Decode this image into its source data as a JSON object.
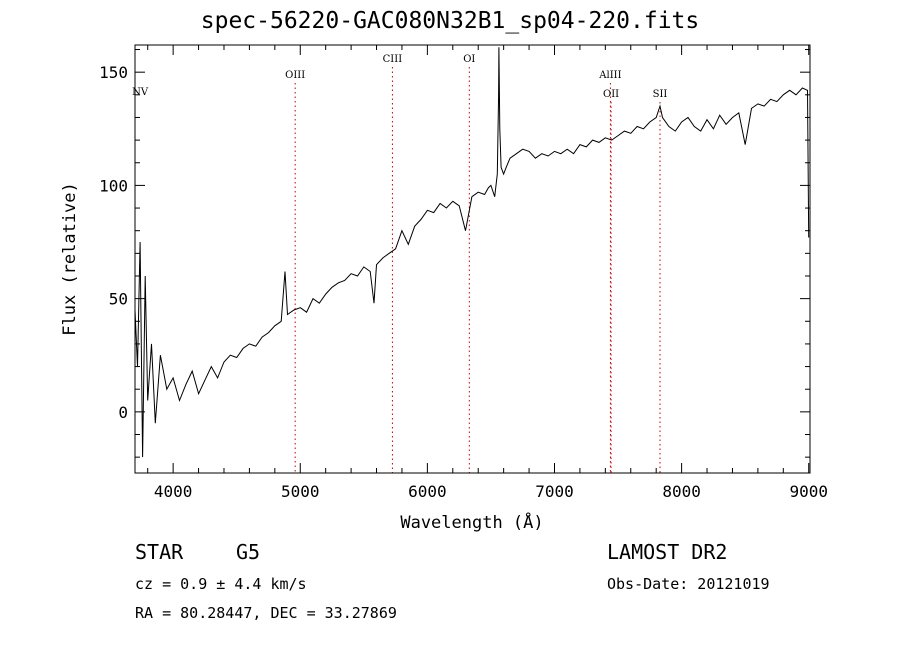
{
  "chart_data": {
    "type": "line",
    "title": "spec-56220-GAC080N32B1_sp04-220.fits",
    "xlabel": "Wavelength (Å)",
    "ylabel": "Flux (relative)",
    "xlim": [
      3700,
      9010
    ],
    "ylim": [
      -27,
      162
    ],
    "x_ticks": [
      4000,
      5000,
      6000,
      7000,
      8000,
      9000
    ],
    "y_ticks": [
      0,
      50,
      100,
      150
    ],
    "grid": false,
    "legend": "none",
    "series": [
      {
        "x": [
          3700,
          3720,
          3740,
          3760,
          3780,
          3800,
          3830,
          3860,
          3900,
          3950,
          4000,
          4050,
          4100,
          4150,
          4200,
          4250,
          4300,
          4350,
          4400,
          4450,
          4500,
          4550,
          4600,
          4650,
          4700,
          4750,
          4800,
          4850,
          4880,
          4900,
          4950,
          5000,
          5050,
          5100,
          5150,
          5200,
          5250,
          5300,
          5350,
          5400,
          5450,
          5500,
          5550,
          5580,
          5600,
          5650,
          5700,
          5750,
          5800,
          5850,
          5900,
          5950,
          6000,
          6050,
          6100,
          6150,
          6200,
          6250,
          6300,
          6350,
          6400,
          6450,
          6480,
          6500,
          6530,
          6550,
          6560,
          6563,
          6570,
          6580,
          6600,
          6620,
          6650,
          6700,
          6750,
          6800,
          6850,
          6900,
          6950,
          7000,
          7050,
          7100,
          7150,
          7200,
          7250,
          7300,
          7350,
          7400,
          7450,
          7500,
          7550,
          7600,
          7650,
          7700,
          7750,
          7800,
          7830,
          7850,
          7900,
          7950,
          8000,
          8050,
          8100,
          8150,
          8200,
          8250,
          8300,
          8350,
          8400,
          8450,
          8500,
          8550,
          8600,
          8650,
          8700,
          8750,
          8800,
          8850,
          8900,
          8950,
          8990,
          9000
        ],
        "y": [
          45,
          20,
          75,
          -20,
          60,
          5,
          30,
          -5,
          25,
          10,
          15,
          5,
          12,
          18,
          8,
          14,
          20,
          15,
          22,
          25,
          24,
          28,
          30,
          29,
          33,
          35,
          38,
          40,
          62,
          43,
          45,
          46,
          44,
          50,
          48,
          52,
          55,
          57,
          58,
          61,
          60,
          64,
          62,
          48,
          65,
          68,
          70,
          72,
          80,
          74,
          82,
          85,
          89,
          88,
          92,
          90,
          93,
          91,
          80,
          95,
          97,
          96,
          99,
          100,
          95,
          105,
          140,
          161,
          125,
          108,
          105,
          108,
          112,
          114,
          116,
          115,
          112,
          114,
          113,
          115,
          114,
          116,
          114,
          118,
          117,
          120,
          119,
          121,
          120,
          122,
          124,
          123,
          126,
          125,
          128,
          130,
          135,
          130,
          126,
          124,
          128,
          130,
          126,
          124,
          129,
          125,
          131,
          127,
          130,
          132,
          118,
          134,
          136,
          135,
          138,
          137,
          140,
          142,
          140,
          143,
          142,
          77
        ]
      }
    ],
    "line_markers": [
      {
        "label": "NV",
        "x": 3740,
        "color": "#cc0000"
      },
      {
        "label": "OIII",
        "x": 4960,
        "color": "#cc0000"
      },
      {
        "label": "CIII",
        "x": 5725,
        "color": "#cc0000"
      },
      {
        "label": "OI",
        "x": 6330,
        "color": "#cc0000"
      },
      {
        "label": "AlIII",
        "x": 7440,
        "color": "#cc0000"
      },
      {
        "label": "OII",
        "x": 7445,
        "color": "#cc0000"
      },
      {
        "label": "SII",
        "x": 7830,
        "color": "#cc0000"
      }
    ]
  },
  "info": {
    "object_class": "STAR",
    "subclass": "G5",
    "survey": "LAMOST DR2",
    "cz": "cz = 0.9 ± 4.4 km/s",
    "obs_date": "Obs-Date: 20121019",
    "radec": "RA =  80.28447, DEC =  33.27869"
  }
}
